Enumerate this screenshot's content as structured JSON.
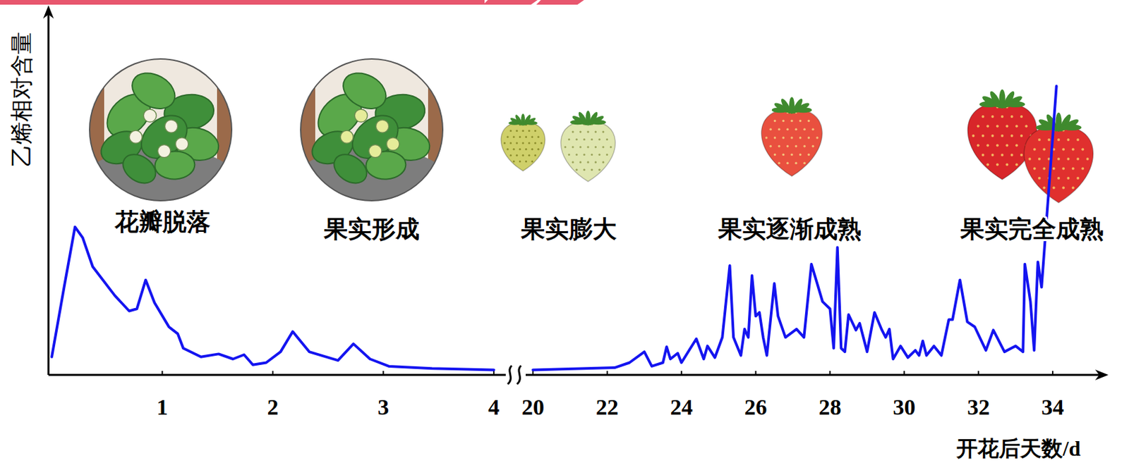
{
  "chart_data": {
    "type": "line",
    "x_label": "开花后天数/d",
    "y_label": "乙烯相对含量",
    "xlim": [
      0,
      35.5
    ],
    "axis_break": [
      4,
      20
    ],
    "xticks": [
      1,
      2,
      3,
      4,
      20,
      22,
      24,
      26,
      28,
      30,
      32,
      34
    ],
    "ylim": [
      0,
      10
    ],
    "tick_labels": "x",
    "grid": false,
    "annotations": [
      "花瓣脱落",
      "果实形成",
      "果实膨大",
      "果实逐渐成熟",
      "果实完全成熟"
    ],
    "x": [
      0,
      0.02,
      0.11,
      0.21,
      0.28,
      0.37,
      0.57,
      0.7,
      0.77,
      0.85,
      0.93,
      1.06,
      1.14,
      1.19,
      1.35,
      1.51,
      1.64,
      1.74,
      1.82,
      1.94,
      2.07,
      2.18,
      2.33,
      2.59,
      2.73,
      2.88,
      3.05,
      3.44,
      4,
      20,
      22.2,
      22.6,
      23.0,
      23.2,
      23.5,
      23.6,
      23.7,
      23.9,
      24.0,
      24.4,
      24.6,
      24.7,
      24.9,
      25.1,
      25.3,
      25.4,
      25.6,
      25.7,
      25.8,
      25.9,
      26.0,
      26.1,
      26.2,
      26.3,
      26.5,
      26.6,
      26.8,
      27.1,
      27.3,
      27.5,
      27.8,
      28.0,
      28.1,
      28.2,
      28.3,
      28.4,
      28.5,
      28.7,
      28.8,
      29.0,
      29.2,
      29.4,
      29.5,
      29.6,
      29.7,
      29.9,
      30.1,
      30.3,
      30.4,
      30.5,
      30.6,
      30.8,
      31.0,
      31.2,
      31.3,
      31.5,
      31.7,
      31.9,
      32.2,
      32.4,
      32.7,
      33.0,
      33.2,
      33.25,
      33.4,
      33.5,
      33.6,
      33.7,
      34.1
    ],
    "series": [
      {
        "name": "乙烯相对含量",
        "color": "#1414f0",
        "values": [
          0.5,
          0.84,
          2.4,
          4.1,
          3.8,
          3.0,
          2.2,
          1.77,
          1.83,
          2.63,
          2.0,
          1.33,
          1.14,
          0.74,
          0.5,
          0.58,
          0.44,
          0.56,
          0.28,
          0.34,
          0.64,
          1.2,
          0.64,
          0.4,
          0.86,
          0.44,
          0.24,
          0.18,
          0.14,
          0.14,
          0.2,
          0.34,
          0.64,
          0.24,
          0.34,
          0.78,
          0.44,
          0.6,
          0.34,
          1.0,
          0.44,
          0.8,
          0.48,
          1.04,
          3.03,
          1.04,
          0.54,
          1.27,
          1.04,
          2.75,
          1.63,
          1.73,
          1.04,
          0.54,
          2.53,
          1.63,
          1.04,
          1.27,
          1.04,
          3.07,
          2.03,
          1.83,
          0.74,
          3.53,
          0.74,
          0.64,
          1.67,
          1.24,
          1.43,
          0.64,
          1.73,
          1.24,
          1.04,
          1.27,
          0.44,
          0.8,
          0.48,
          0.68,
          0.54,
          0.94,
          0.54,
          0.8,
          0.54,
          1.53,
          1.53,
          2.63,
          1.47,
          1.33,
          0.68,
          1.24,
          0.64,
          0.8,
          0.64,
          3.07,
          2.03,
          0.68,
          3.13,
          2.43,
          8.0
        ]
      }
    ]
  }
}
